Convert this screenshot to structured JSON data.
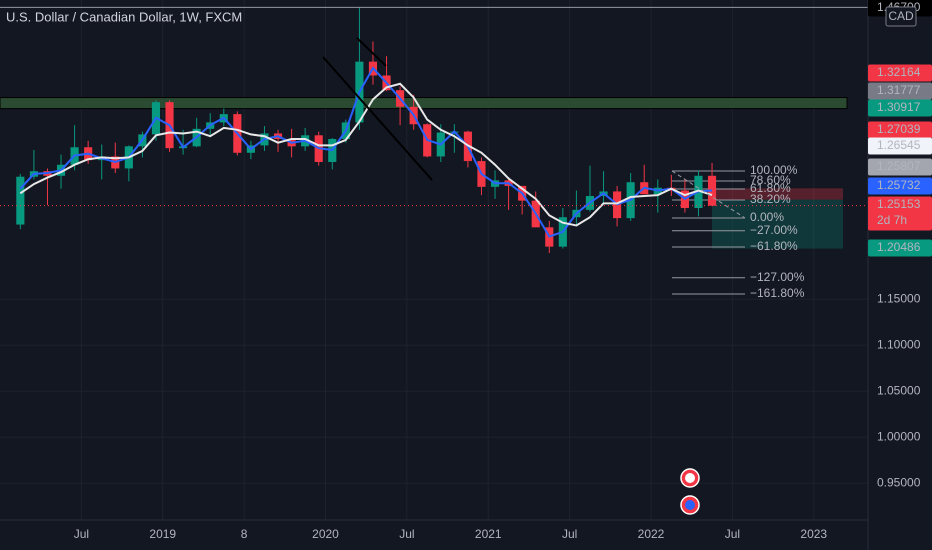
{
  "chart_data": {
    "type": "candlestick",
    "title": "U.S. Dollar / Canadian Dollar, 1W, FXCM",
    "currency": "CAD",
    "x": [
      "2018-02",
      "2018-03",
      "2018-04",
      "2018-05",
      "2018-06",
      "2018-07",
      "2018-08",
      "2018-09",
      "2018-10",
      "2018-11",
      "2018-12",
      "2019-01",
      "2019-02",
      "2019-03",
      "2019-04",
      "2019-05",
      "2019-06",
      "2019-07",
      "2019-08",
      "2019-09",
      "2019-10",
      "2019-11",
      "2019-12",
      "2020-01",
      "2020-02",
      "2020-03",
      "2020-04",
      "2020-05",
      "2020-06",
      "2020-07",
      "2020-08",
      "2020-09",
      "2020-10",
      "2020-11",
      "2020-12",
      "2021-01",
      "2021-02",
      "2021-03",
      "2021-04",
      "2021-05",
      "2021-06",
      "2021-07",
      "2021-08",
      "2021-09",
      "2021-10",
      "2021-11",
      "2021-12",
      "2022-01",
      "2022-02",
      "2022-03",
      "2022-04",
      "2022-05"
    ],
    "open": [
      1.231,
      1.283,
      1.289,
      1.284,
      1.296,
      1.315,
      1.301,
      1.305,
      1.292,
      1.316,
      1.329,
      1.364,
      1.314,
      1.316,
      1.335,
      1.342,
      1.351,
      1.309,
      1.317,
      1.33,
      1.324,
      1.316,
      1.328,
      1.299,
      1.324,
      1.342,
      1.408,
      1.393,
      1.377,
      1.359,
      1.34,
      1.305,
      1.331,
      1.332,
      1.3,
      1.272,
      1.279,
      1.273,
      1.257,
      1.228,
      1.207,
      1.239,
      1.247,
      1.262,
      1.267,
      1.238,
      1.277,
      1.264,
      1.271,
      1.268,
      1.249,
      1.284
    ],
    "high": [
      1.286,
      1.312,
      1.292,
      1.307,
      1.339,
      1.322,
      1.318,
      1.32,
      1.317,
      1.332,
      1.366,
      1.366,
      1.334,
      1.347,
      1.352,
      1.357,
      1.354,
      1.322,
      1.338,
      1.334,
      1.335,
      1.336,
      1.332,
      1.325,
      1.345,
      1.467,
      1.43,
      1.414,
      1.381,
      1.372,
      1.341,
      1.34,
      1.34,
      1.333,
      1.304,
      1.29,
      1.282,
      1.273,
      1.267,
      1.235,
      1.249,
      1.268,
      1.295,
      1.289,
      1.273,
      1.287,
      1.296,
      1.28,
      1.285,
      1.28,
      1.29,
      1.298
    ],
    "low": [
      1.226,
      1.28,
      1.252,
      1.27,
      1.29,
      1.297,
      1.28,
      1.287,
      1.278,
      1.304,
      1.322,
      1.31,
      1.307,
      1.315,
      1.326,
      1.338,
      1.306,
      1.302,
      1.311,
      1.31,
      1.304,
      1.311,
      1.295,
      1.291,
      1.32,
      1.334,
      1.383,
      1.376,
      1.339,
      1.334,
      1.304,
      1.299,
      1.309,
      1.293,
      1.263,
      1.259,
      1.247,
      1.242,
      1.228,
      1.2,
      1.205,
      1.229,
      1.245,
      1.255,
      1.229,
      1.235,
      1.264,
      1.244,
      1.262,
      1.244,
      1.24,
      1.251
    ],
    "close": [
      1.283,
      1.289,
      1.284,
      1.296,
      1.315,
      1.301,
      1.305,
      1.292,
      1.316,
      1.329,
      1.364,
      1.314,
      1.316,
      1.335,
      1.342,
      1.351,
      1.309,
      1.317,
      1.33,
      1.324,
      1.316,
      1.328,
      1.299,
      1.324,
      1.342,
      1.408,
      1.393,
      1.377,
      1.359,
      1.34,
      1.305,
      1.331,
      1.332,
      1.3,
      1.272,
      1.279,
      1.273,
      1.257,
      1.228,
      1.207,
      1.239,
      1.247,
      1.262,
      1.267,
      1.238,
      1.277,
      1.264,
      1.271,
      1.268,
      1.249,
      1.284,
      1.2515
    ],
    "up_color": "#089981",
    "down_color": "#f23645",
    "lines": [
      {
        "color": "#2962ff",
        "values": [
          1.27,
          1.286,
          1.287,
          1.29,
          1.306,
          1.308,
          1.303,
          1.299,
          1.304,
          1.323,
          1.347,
          1.339,
          1.315,
          1.326,
          1.339,
          1.347,
          1.33,
          1.313,
          1.324,
          1.327,
          1.32,
          1.322,
          1.314,
          1.312,
          1.333,
          1.375,
          1.401,
          1.385,
          1.368,
          1.35,
          1.323,
          1.318,
          1.332,
          1.316,
          1.286,
          1.276,
          1.276,
          1.265,
          1.243,
          1.218,
          1.223,
          1.243,
          1.255,
          1.265,
          1.253,
          1.258,
          1.271,
          1.268,
          1.27,
          1.259,
          1.267,
          1.268
        ]
      },
      {
        "color": "#e8e8e8",
        "values": [
          1.265,
          1.275,
          1.282,
          1.288,
          1.296,
          1.302,
          1.304,
          1.303,
          1.304,
          1.311,
          1.328,
          1.331,
          1.33,
          1.332,
          1.327,
          1.336,
          1.334,
          1.329,
          1.327,
          1.32,
          1.324,
          1.324,
          1.317,
          1.317,
          1.323,
          1.343,
          1.367,
          1.38,
          1.384,
          1.369,
          1.345,
          1.334,
          1.327,
          1.317,
          1.309,
          1.296,
          1.281,
          1.27,
          1.259,
          1.241,
          1.233,
          1.23,
          1.239,
          1.254,
          1.254,
          1.261,
          1.262,
          1.263,
          1.27,
          1.263,
          1.268,
          1.263
        ]
      }
    ],
    "zone": {
      "from": 1.357,
      "to": 1.369,
      "color": "#2a4a32"
    },
    "xlim": [
      "2018-01",
      "2023-05"
    ],
    "xticks": [
      {
        "value": "2018-07",
        "label": "Jul"
      },
      {
        "value": "2019-01",
        "label": "2019"
      },
      {
        "value": "2019-07",
        "label": "8"
      },
      {
        "value": "2020-01",
        "label": "2020"
      },
      {
        "value": "2020-07",
        "label": "Jul"
      },
      {
        "value": "2021-01",
        "label": "2021"
      },
      {
        "value": "2021-07",
        "label": "Jul"
      },
      {
        "value": "2022-01",
        "label": "2022"
      },
      {
        "value": "2022-07",
        "label": "Jul"
      },
      {
        "value": "2023-01",
        "label": "2023"
      }
    ],
    "ylim": [
      0.91,
      1.475
    ],
    "yticks": [
      {
        "value": 1.15,
        "label": "1.15000"
      },
      {
        "value": 1.1,
        "label": "1.10000"
      },
      {
        "value": 1.05,
        "label": "1.05000"
      },
      {
        "value": 1,
        "label": "1.00000"
      },
      {
        "value": 0.95,
        "label": "0.95000"
      }
    ],
    "grid": true,
    "price_tags": [
      {
        "value": 1.467,
        "label": "1.46700",
        "color": "#000000"
      },
      {
        "value": 1.32164,
        "color": "#f23645"
      },
      {
        "value": 1.31777,
        "color": "#787b86"
      },
      {
        "value": 1.30917,
        "color": "#089981"
      },
      {
        "value": 1.27039,
        "color": "#f23645"
      },
      {
        "value": 1.26545,
        "color": "#f0f3fa"
      },
      {
        "value": 1.25807,
        "color": "#a3a6af"
      },
      {
        "value": 1.25732,
        "color": "#2962ff"
      },
      {
        "value": 1.25153,
        "color": "#f23645",
        "countdown": "2d 7h"
      },
      {
        "value": 1.20486,
        "color": "#089981"
      }
    ],
    "fib_levels": [
      {
        "value": 100,
        "label": "100.00%"
      },
      {
        "value": 78.6,
        "label": "78.60%"
      },
      {
        "value": 61.8,
        "label": "61.80%"
      },
      {
        "value": 38.2,
        "label": "38.20%"
      },
      {
        "value": 0,
        "label": "0.00%"
      },
      {
        "value": -27,
        "label": "−27.00%"
      },
      {
        "value": -61.8,
        "label": "−61.80%"
      },
      {
        "value": -127,
        "label": "−127.00%"
      },
      {
        "value": -161.8,
        "label": "−161.80%"
      }
    ]
  }
}
